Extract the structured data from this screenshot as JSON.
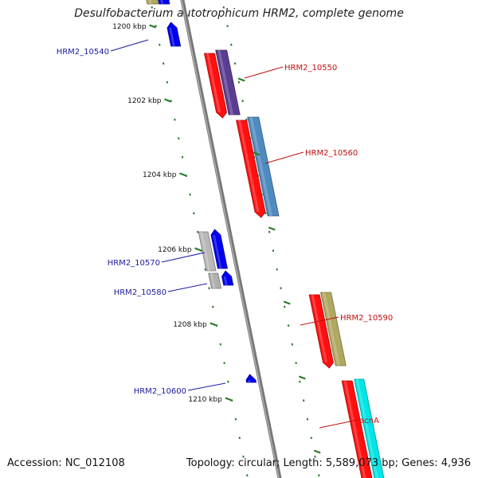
{
  "title": "Desulfobacterium autotrophicum HRM2, complete genome",
  "footer": {
    "accession": "Accession: NC_012108",
    "stats": "Topology: circular; Length: 5,589,073 bp; Genes: 4,936"
  },
  "colors": {
    "backbone": "#888888",
    "tick": "#2a7a2a",
    "left_label": "#1a1aa0",
    "right_label": "#c01010"
  },
  "ruler": [
    "1200 kbp",
    "1202 kbp",
    "1204 kbp",
    "1206 kbp",
    "1208 kbp",
    "1210 kbp"
  ],
  "genes": [
    {
      "label": "HRM2_10540",
      "side": "left",
      "color": "#0000ee"
    },
    {
      "label": "HRM2_10550",
      "side": "right",
      "color": "#5a3d91"
    },
    {
      "label": "HRM2_10560",
      "side": "right",
      "color": "#4f8ac0"
    },
    {
      "label": "HRM2_10570",
      "side": "left",
      "color": "#0000ee"
    },
    {
      "label": "HRM2_10580",
      "side": "left",
      "color": "#0000ee"
    },
    {
      "label": "HRM2_10590",
      "side": "right",
      "color": "#b0a860"
    },
    {
      "label": "HRM2_10600",
      "side": "left",
      "color": "#0000ee"
    },
    {
      "label": "acnA",
      "side": "right",
      "color": "#00e5e5"
    }
  ]
}
